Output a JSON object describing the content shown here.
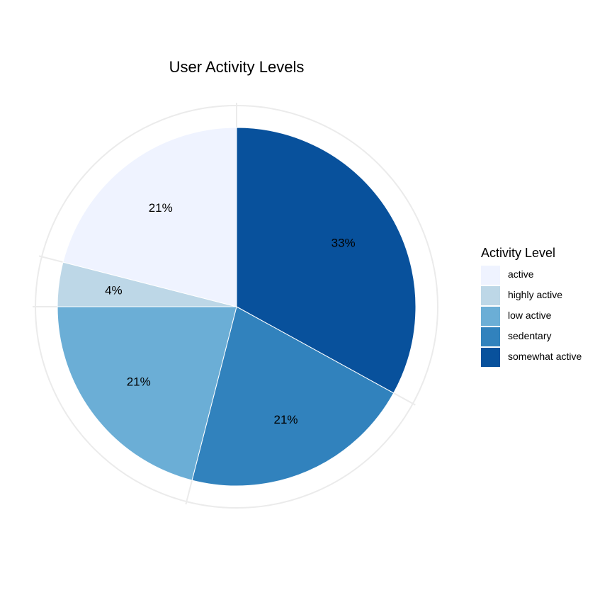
{
  "chart_data": {
    "type": "pie",
    "title": "User Activity Levels",
    "legend_title": "Activity Level",
    "legend_position": "right",
    "categories": [
      "active",
      "highly active",
      "low active",
      "sedentary",
      "somewhat active"
    ],
    "values": [
      21,
      4,
      21,
      21,
      33
    ],
    "labels": [
      "21%",
      "4%",
      "21%",
      "21%",
      "33%"
    ],
    "colors": [
      "#EFF3FF",
      "#BDD7E7",
      "#6BAED6",
      "#3182BD",
      "#08519C"
    ],
    "grid": true
  }
}
